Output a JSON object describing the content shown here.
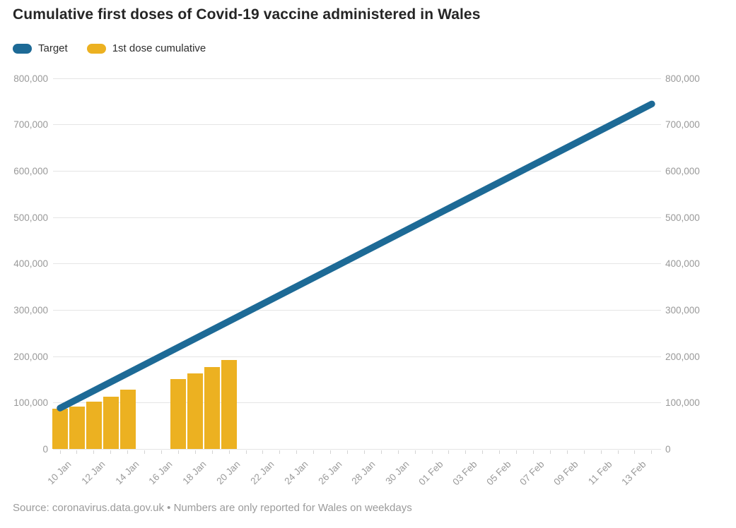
{
  "title": "Cumulative first doses of Covid-19 vaccine administered in Wales",
  "footer": "Source: coronavirus.data.gov.uk • Numbers are only reported for Wales on weekdays",
  "legend": {
    "items": [
      {
        "label": "Target",
        "color": "#1d6a96"
      },
      {
        "label": "1st dose cumulative",
        "color": "#ecb121"
      }
    ]
  },
  "chart_data": {
    "type": "combo",
    "title": "Cumulative first doses of Covid-19 vaccine administered in Wales",
    "xlabel": "",
    "ylabel": "",
    "ylim": [
      0,
      800000
    ],
    "grid": "horizontal",
    "legend_position": "top-left",
    "x_days": [
      "10 Jan",
      "11 Jan",
      "12 Jan",
      "13 Jan",
      "14 Jan",
      "15 Jan",
      "16 Jan",
      "17 Jan",
      "18 Jan",
      "19 Jan",
      "20 Jan",
      "21 Jan",
      "22 Jan",
      "23 Jan",
      "24 Jan",
      "25 Jan",
      "26 Jan",
      "27 Jan",
      "28 Jan",
      "29 Jan",
      "30 Jan",
      "31 Jan",
      "01 Feb",
      "02 Feb",
      "03 Feb",
      "04 Feb",
      "05 Feb",
      "06 Feb",
      "07 Feb",
      "08 Feb",
      "09 Feb",
      "10 Feb",
      "11 Feb",
      "12 Feb",
      "13 Feb",
      "14 Feb"
    ],
    "x_labeled_ticks": [
      "10 Jan",
      "12 Jan",
      "14 Jan",
      "16 Jan",
      "18 Jan",
      "20 Jan",
      "22 Jan",
      "24 Jan",
      "26 Jan",
      "28 Jan",
      "30 Jan",
      "01 Feb",
      "03 Feb",
      "05 Feb",
      "07 Feb",
      "09 Feb",
      "11 Feb",
      "13 Feb"
    ],
    "y_ticks": {
      "values": [
        0,
        100000,
        200000,
        300000,
        400000,
        500000,
        600000,
        700000,
        800000
      ],
      "labels": [
        "0",
        "100,000",
        "200,000",
        "300,000",
        "400,000",
        "500,000",
        "600,000",
        "700,000",
        "800,000"
      ]
    },
    "series": [
      {
        "name": "Target",
        "type": "line",
        "color": "#1d6a96",
        "points": [
          {
            "date": "10 Jan",
            "value": 89000
          },
          {
            "date": "14 Feb",
            "value": 745000
          }
        ]
      },
      {
        "name": "1st dose cumulative",
        "type": "bar",
        "color": "#ecb121",
        "points": [
          {
            "date": "10 Jan",
            "value": 87000
          },
          {
            "date": "11 Jan",
            "value": 92000
          },
          {
            "date": "12 Jan",
            "value": 103000
          },
          {
            "date": "13 Jan",
            "value": 114000
          },
          {
            "date": "14 Jan",
            "value": 128000
          },
          {
            "date": "17 Jan",
            "value": 152000
          },
          {
            "date": "18 Jan",
            "value": 163000
          },
          {
            "date": "19 Jan",
            "value": 177000
          },
          {
            "date": "20 Jan",
            "value": 192000
          }
        ]
      }
    ]
  }
}
